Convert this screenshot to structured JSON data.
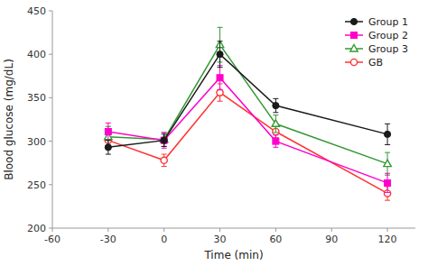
{
  "chart_data": {
    "type": "line",
    "xlabel": "Time (min)",
    "ylabel": "Blood glucose (mg/dL)",
    "x": [
      -30,
      0,
      30,
      60,
      120
    ],
    "series": [
      {
        "name": "Group 1",
        "color": "#1a1a1a",
        "marker": "circle",
        "values": [
          293,
          301,
          400,
          341,
          308
        ],
        "errors": [
          8,
          7,
          15,
          8,
          12
        ]
      },
      {
        "name": "Group 2",
        "color": "#ff00cc",
        "marker": "square",
        "values": [
          311,
          301,
          373,
          300,
          252
        ],
        "errors": [
          10,
          9,
          14,
          7,
          11
        ]
      },
      {
        "name": "Group 3",
        "color": "#339933",
        "marker": "triangle-open",
        "values": [
          305,
          302,
          411,
          320,
          274
        ],
        "errors": [
          12,
          8,
          20,
          10,
          13
        ]
      },
      {
        "name": "GB",
        "color": "#ff3333",
        "marker": "circle-open",
        "values": [
          301,
          278,
          356,
          311,
          240
        ],
        "errors": [
          9,
          7,
          10,
          7,
          8
        ]
      }
    ],
    "xlim": [
      -60,
      135
    ],
    "ylim": [
      200,
      450
    ],
    "xticks": [
      -60,
      -30,
      0,
      30,
      60,
      90,
      120
    ],
    "yticks": [
      200,
      250,
      300,
      350,
      400,
      450
    ],
    "grid": false,
    "legend": "upper right"
  }
}
